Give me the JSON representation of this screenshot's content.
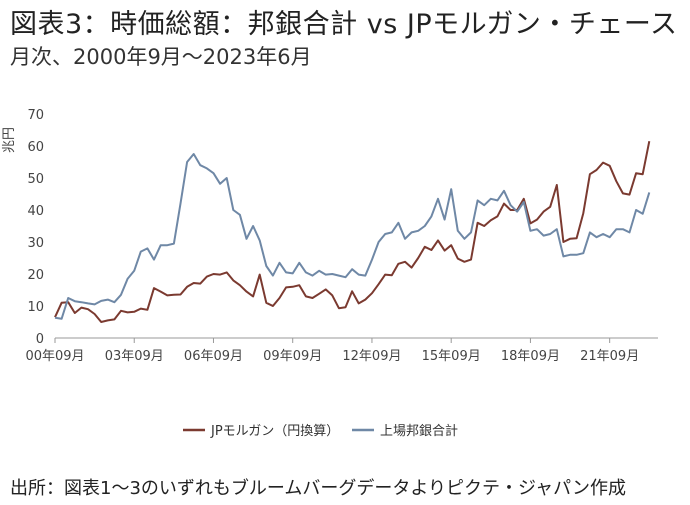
{
  "title": "図表3：時価総額：邦銀合計 vs JPモルガン・チェース",
  "subtitle": "月次、2000年9月～2023年6月",
  "source": "出所：図表1～3のいずれもブルームバーグデータよりピクテ・ジャパン作成",
  "colors": {
    "jpm": "#7b3a30",
    "banks": "#6f88a6",
    "axis": "#999999"
  },
  "chart_data": {
    "type": "line",
    "ylabel": "兆円",
    "ylim": [
      0,
      70
    ],
    "yticks": [
      0,
      10,
      20,
      30,
      40,
      50,
      60,
      70
    ],
    "xlim": [
      2000.67,
      2023.5
    ],
    "xticks": [
      {
        "x": 2000.67,
        "label": "00年09月"
      },
      {
        "x": 2003.67,
        "label": "03年09月"
      },
      {
        "x": 2006.67,
        "label": "06年09月"
      },
      {
        "x": 2009.67,
        "label": "09年09月"
      },
      {
        "x": 2012.67,
        "label": "12年09月"
      },
      {
        "x": 2015.67,
        "label": "15年09月"
      },
      {
        "x": 2018.67,
        "label": "18年09月"
      },
      {
        "x": 2021.67,
        "label": "21年09月"
      }
    ],
    "legend": "bottom",
    "grid": false,
    "series": [
      {
        "name": "JPモルガン（円換算）",
        "color": "#7b3a30",
        "points": [
          [
            2000.67,
            6.5
          ],
          [
            2000.92,
            11.0
          ],
          [
            2001.17,
            11.2
          ],
          [
            2001.42,
            7.8
          ],
          [
            2001.67,
            9.5
          ],
          [
            2001.92,
            9.0
          ],
          [
            2002.17,
            7.5
          ],
          [
            2002.42,
            5.0
          ],
          [
            2002.67,
            5.5
          ],
          [
            2002.92,
            5.8
          ],
          [
            2003.17,
            8.5
          ],
          [
            2003.42,
            8.0
          ],
          [
            2003.67,
            8.2
          ],
          [
            2003.92,
            9.2
          ],
          [
            2004.17,
            8.8
          ],
          [
            2004.42,
            15.6
          ],
          [
            2004.67,
            14.5
          ],
          [
            2004.92,
            13.3
          ],
          [
            2005.17,
            13.5
          ],
          [
            2005.42,
            13.6
          ],
          [
            2005.67,
            16.0
          ],
          [
            2005.92,
            17.2
          ],
          [
            2006.17,
            17.0
          ],
          [
            2006.42,
            19.2
          ],
          [
            2006.67,
            20.0
          ],
          [
            2006.92,
            19.8
          ],
          [
            2007.17,
            20.5
          ],
          [
            2007.42,
            18.0
          ],
          [
            2007.67,
            16.5
          ],
          [
            2007.92,
            14.5
          ],
          [
            2008.17,
            13.0
          ],
          [
            2008.42,
            19.8
          ],
          [
            2008.67,
            11.0
          ],
          [
            2008.92,
            10.0
          ],
          [
            2009.17,
            12.5
          ],
          [
            2009.42,
            15.8
          ],
          [
            2009.67,
            16.0
          ],
          [
            2009.92,
            16.5
          ],
          [
            2010.17,
            13.0
          ],
          [
            2010.42,
            12.5
          ],
          [
            2010.67,
            13.8
          ],
          [
            2010.92,
            15.2
          ],
          [
            2011.17,
            13.3
          ],
          [
            2011.42,
            9.3
          ],
          [
            2011.67,
            9.6
          ],
          [
            2011.92,
            14.6
          ],
          [
            2012.17,
            10.8
          ],
          [
            2012.42,
            12.0
          ],
          [
            2012.67,
            14.0
          ],
          [
            2012.92,
            16.8
          ],
          [
            2013.17,
            19.8
          ],
          [
            2013.42,
            19.6
          ],
          [
            2013.67,
            23.2
          ],
          [
            2013.92,
            23.8
          ],
          [
            2014.17,
            22.0
          ],
          [
            2014.42,
            25.0
          ],
          [
            2014.67,
            28.5
          ],
          [
            2014.92,
            27.5
          ],
          [
            2015.17,
            30.5
          ],
          [
            2015.42,
            27.3
          ],
          [
            2015.67,
            29.0
          ],
          [
            2015.92,
            24.8
          ],
          [
            2016.17,
            23.8
          ],
          [
            2016.42,
            24.5
          ],
          [
            2016.67,
            36.0
          ],
          [
            2016.92,
            35.0
          ],
          [
            2017.17,
            36.8
          ],
          [
            2017.42,
            38.0
          ],
          [
            2017.67,
            42.0
          ],
          [
            2017.92,
            40.0
          ],
          [
            2018.17,
            40.0
          ],
          [
            2018.42,
            43.5
          ],
          [
            2018.67,
            35.8
          ],
          [
            2018.92,
            37.0
          ],
          [
            2019.17,
            39.5
          ],
          [
            2019.42,
            41.0
          ],
          [
            2019.67,
            47.8
          ],
          [
            2019.92,
            30.0
          ],
          [
            2020.17,
            31.0
          ],
          [
            2020.42,
            31.2
          ],
          [
            2020.67,
            39.0
          ],
          [
            2020.92,
            51.2
          ],
          [
            2021.17,
            52.5
          ],
          [
            2021.42,
            54.8
          ],
          [
            2021.67,
            53.8
          ],
          [
            2021.92,
            49.0
          ],
          [
            2022.17,
            45.2
          ],
          [
            2022.42,
            44.8
          ],
          [
            2022.67,
            51.5
          ],
          [
            2022.92,
            51.2
          ],
          [
            2023.17,
            61.5
          ]
        ]
      },
      {
        "name": "上場邦銀合計",
        "color": "#6f88a6",
        "points": [
          [
            2000.67,
            6.3
          ],
          [
            2000.92,
            6.0
          ],
          [
            2001.17,
            12.5
          ],
          [
            2001.42,
            11.5
          ],
          [
            2001.67,
            11.2
          ],
          [
            2001.92,
            10.8
          ],
          [
            2002.17,
            10.5
          ],
          [
            2002.42,
            11.6
          ],
          [
            2002.67,
            12.0
          ],
          [
            2002.92,
            11.2
          ],
          [
            2003.17,
            13.5
          ],
          [
            2003.42,
            18.5
          ],
          [
            2003.67,
            21.0
          ],
          [
            2003.92,
            27.0
          ],
          [
            2004.17,
            28.0
          ],
          [
            2004.42,
            24.5
          ],
          [
            2004.67,
            29.0
          ],
          [
            2004.92,
            29.0
          ],
          [
            2005.17,
            29.5
          ],
          [
            2005.42,
            42.0
          ],
          [
            2005.67,
            55.0
          ],
          [
            2005.92,
            57.5
          ],
          [
            2006.17,
            54.0
          ],
          [
            2006.42,
            53.0
          ],
          [
            2006.67,
            51.5
          ],
          [
            2006.92,
            48.2
          ],
          [
            2007.17,
            50.0
          ],
          [
            2007.42,
            40.0
          ],
          [
            2007.67,
            38.5
          ],
          [
            2007.92,
            31.0
          ],
          [
            2008.17,
            35.0
          ],
          [
            2008.42,
            30.5
          ],
          [
            2008.67,
            22.5
          ],
          [
            2008.92,
            19.5
          ],
          [
            2009.17,
            23.5
          ],
          [
            2009.42,
            20.5
          ],
          [
            2009.67,
            20.2
          ],
          [
            2009.92,
            23.5
          ],
          [
            2010.17,
            20.5
          ],
          [
            2010.42,
            19.5
          ],
          [
            2010.67,
            21.0
          ],
          [
            2010.92,
            19.8
          ],
          [
            2011.17,
            20.0
          ],
          [
            2011.42,
            19.5
          ],
          [
            2011.67,
            19.0
          ],
          [
            2011.92,
            21.5
          ],
          [
            2012.17,
            19.8
          ],
          [
            2012.42,
            19.5
          ],
          [
            2012.67,
            24.5
          ],
          [
            2012.92,
            30.0
          ],
          [
            2013.17,
            32.5
          ],
          [
            2013.42,
            33.0
          ],
          [
            2013.67,
            36.0
          ],
          [
            2013.92,
            31.0
          ],
          [
            2014.17,
            33.0
          ],
          [
            2014.42,
            33.5
          ],
          [
            2014.67,
            35.0
          ],
          [
            2014.92,
            38.0
          ],
          [
            2015.17,
            43.5
          ],
          [
            2015.42,
            37.0
          ],
          [
            2015.67,
            46.5
          ],
          [
            2015.92,
            33.5
          ],
          [
            2016.17,
            31.0
          ],
          [
            2016.42,
            33.0
          ],
          [
            2016.67,
            43.0
          ],
          [
            2016.92,
            41.5
          ],
          [
            2017.17,
            43.5
          ],
          [
            2017.42,
            43.0
          ],
          [
            2017.67,
            46.0
          ],
          [
            2017.92,
            41.5
          ],
          [
            2018.17,
            39.5
          ],
          [
            2018.42,
            42.5
          ],
          [
            2018.67,
            33.5
          ],
          [
            2018.92,
            34.0
          ],
          [
            2019.17,
            32.0
          ],
          [
            2019.42,
            32.5
          ],
          [
            2019.67,
            34.0
          ],
          [
            2019.92,
            25.5
          ],
          [
            2020.17,
            26.0
          ],
          [
            2020.42,
            26.0
          ],
          [
            2020.67,
            26.5
          ],
          [
            2020.92,
            33.0
          ],
          [
            2021.17,
            31.5
          ],
          [
            2021.42,
            32.5
          ],
          [
            2021.67,
            31.5
          ],
          [
            2021.92,
            34.0
          ],
          [
            2022.17,
            34.0
          ],
          [
            2022.42,
            33.0
          ],
          [
            2022.67,
            40.0
          ],
          [
            2022.92,
            38.8
          ],
          [
            2023.17,
            45.5
          ]
        ]
      }
    ]
  }
}
